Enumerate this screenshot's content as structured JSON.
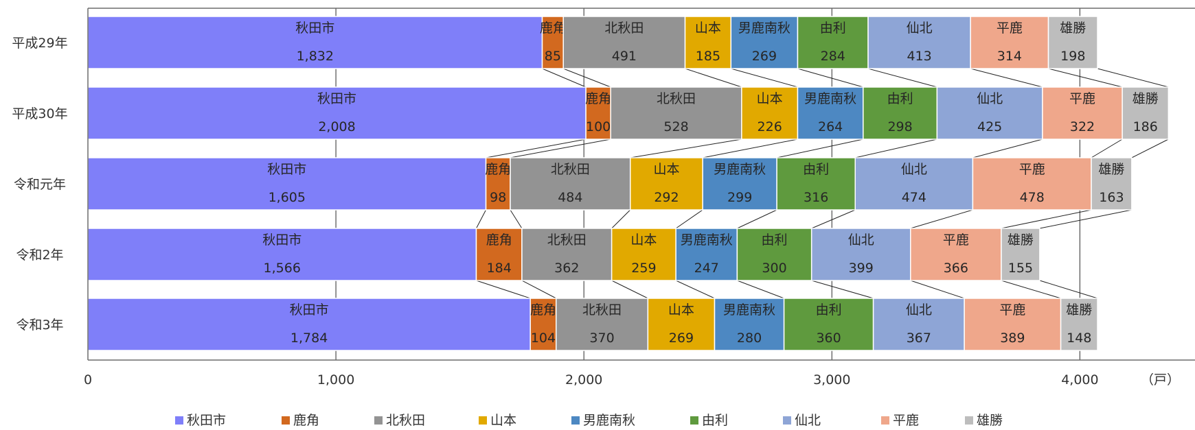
{
  "chart_data": {
    "type": "bar",
    "orientation": "horizontal",
    "stacked": true,
    "categories": [
      "平成29年",
      "平成30年",
      "令和元年",
      "令和2年",
      "令和3年"
    ],
    "series": [
      {
        "name": "秋田市",
        "color": "#7f7ff9",
        "values": [
          1832,
          2008,
          1605,
          1566,
          1784
        ]
      },
      {
        "name": "鹿角",
        "color": "#d2691f",
        "values": [
          85,
          100,
          98,
          184,
          104
        ]
      },
      {
        "name": "北秋田",
        "color": "#939393",
        "values": [
          491,
          528,
          484,
          362,
          370
        ]
      },
      {
        "name": "山本",
        "color": "#e1a900",
        "values": [
          185,
          226,
          292,
          259,
          269
        ]
      },
      {
        "name": "男鹿南秋",
        "color": "#4d88c2",
        "values": [
          269,
          264,
          299,
          247,
          280
        ]
      },
      {
        "name": "由利",
        "color": "#5f9a3e",
        "values": [
          284,
          298,
          316,
          300,
          360
        ]
      },
      {
        "name": "仙北",
        "color": "#8ea5d6",
        "values": [
          413,
          425,
          474,
          399,
          367
        ]
      },
      {
        "name": "平鹿",
        "color": "#efa78b",
        "values": [
          314,
          322,
          478,
          366,
          389
        ]
      },
      {
        "name": "雄勝",
        "color": "#bdbdbd",
        "values": [
          198,
          186,
          163,
          155,
          148
        ]
      }
    ],
    "xlim": [
      0,
      4400
    ],
    "xticks": [
      0,
      1000,
      2000,
      3000,
      4000
    ],
    "xtick_labels": [
      "0",
      "1,000",
      "2,000",
      "3,000",
      "4,000"
    ],
    "unit_label": "（戸）",
    "grid": true,
    "series_lines": true,
    "legend_position": "bottom"
  }
}
